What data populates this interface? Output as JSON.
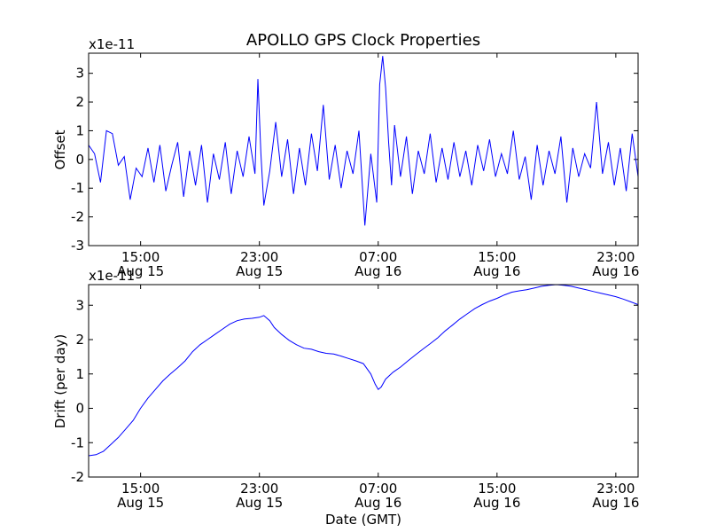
{
  "chart_data": [
    {
      "type": "line",
      "title": "APOLLO GPS Clock Properties",
      "xlabel": "",
      "ylabel": "Offset",
      "y_scale_label": "x1e-11",
      "x_unit": "hours since Aug 15 00:00 GMT",
      "xlim": [
        11.5,
        48.5
      ],
      "ylim": [
        -3,
        3.7
      ],
      "x_ticks": [
        {
          "value": 15,
          "line1": "15:00",
          "line2": "Aug 15"
        },
        {
          "value": 23,
          "line1": "23:00",
          "line2": "Aug 15"
        },
        {
          "value": 31,
          "line1": "07:00",
          "line2": "Aug 16"
        },
        {
          "value": 39,
          "line1": "15:00",
          "line2": "Aug 16"
        },
        {
          "value": 47,
          "line1": "23:00",
          "line2": "Aug 16"
        }
      ],
      "y_ticks": [
        -3,
        -2,
        -1,
        0,
        1,
        2,
        3
      ],
      "grid": false,
      "series": [
        {
          "color": "#0000ff",
          "x": [
            11.5,
            11.9,
            12.3,
            12.7,
            13.1,
            13.5,
            13.9,
            14.3,
            14.7,
            15.1,
            15.5,
            15.9,
            16.3,
            16.7,
            17.1,
            17.5,
            17.9,
            18.3,
            18.7,
            19.1,
            19.5,
            19.9,
            20.3,
            20.7,
            21.1,
            21.5,
            21.9,
            22.3,
            22.7,
            22.9,
            23.1,
            23.3,
            23.7,
            24.1,
            24.5,
            24.9,
            25.3,
            25.7,
            26.1,
            26.5,
            26.9,
            27.3,
            27.7,
            28.1,
            28.5,
            28.9,
            29.3,
            29.7,
            30.1,
            30.5,
            30.9,
            31.1,
            31.3,
            31.5,
            31.7,
            31.9,
            32.1,
            32.5,
            32.9,
            33.3,
            33.7,
            34.1,
            34.5,
            34.9,
            35.3,
            35.7,
            36.1,
            36.5,
            36.9,
            37.3,
            37.7,
            38.1,
            38.5,
            38.9,
            39.3,
            39.7,
            40.1,
            40.5,
            40.9,
            41.3,
            41.7,
            42.1,
            42.5,
            42.9,
            43.3,
            43.7,
            44.1,
            44.5,
            44.9,
            45.3,
            45.7,
            46.1,
            46.5,
            46.9,
            47.3,
            47.7,
            48.1,
            48.5
          ],
          "y": [
            0.5,
            0.2,
            -0.8,
            1.0,
            0.9,
            -0.2,
            0.1,
            -1.4,
            -0.3,
            -0.6,
            0.4,
            -0.8,
            0.5,
            -1.1,
            -0.2,
            0.6,
            -1.3,
            0.3,
            -0.9,
            0.5,
            -1.5,
            0.2,
            -0.7,
            0.6,
            -1.2,
            0.3,
            -0.6,
            0.8,
            -0.5,
            2.8,
            0.2,
            -1.6,
            -0.4,
            1.3,
            -0.6,
            0.7,
            -1.2,
            0.4,
            -0.9,
            0.9,
            -0.4,
            1.9,
            -0.7,
            0.5,
            -1.0,
            0.3,
            -0.5,
            1.0,
            -2.3,
            0.2,
            -1.5,
            2.6,
            3.6,
            2.5,
            0.6,
            -0.9,
            1.2,
            -0.6,
            0.8,
            -1.2,
            0.3,
            -0.5,
            0.9,
            -0.8,
            0.4,
            -0.7,
            0.6,
            -0.6,
            0.3,
            -0.9,
            0.5,
            -0.4,
            0.7,
            -0.6,
            0.2,
            -0.5,
            1.0,
            -0.7,
            0.1,
            -1.4,
            0.5,
            -0.9,
            0.3,
            -0.5,
            0.8,
            -1.5,
            0.4,
            -0.6,
            0.2,
            -0.3,
            2.0,
            -0.5,
            0.6,
            -0.9,
            0.4,
            -1.1,
            0.9,
            -0.6
          ]
        }
      ]
    },
    {
      "type": "line",
      "title": "",
      "xlabel": "Date (GMT)",
      "ylabel": "Drift (per day)",
      "y_scale_label": "x1e-11",
      "x_unit": "hours since Aug 15 00:00 GMT",
      "xlim": [
        11.5,
        48.5
      ],
      "ylim": [
        -2,
        3.6
      ],
      "x_ticks": [
        {
          "value": 15,
          "line1": "15:00",
          "line2": "Aug 15"
        },
        {
          "value": 23,
          "line1": "23:00",
          "line2": "Aug 15"
        },
        {
          "value": 31,
          "line1": "07:00",
          "line2": "Aug 16"
        },
        {
          "value": 39,
          "line1": "15:00",
          "line2": "Aug 16"
        },
        {
          "value": 47,
          "line1": "23:00",
          "line2": "Aug 16"
        }
      ],
      "y_ticks": [
        -2,
        -1,
        0,
        1,
        2,
        3
      ],
      "grid": false,
      "series": [
        {
          "color": "#0000ff",
          "x": [
            11.5,
            12.0,
            12.5,
            13.0,
            13.5,
            14.0,
            14.5,
            15.0,
            15.5,
            16.0,
            16.5,
            17.0,
            17.5,
            18.0,
            18.5,
            19.0,
            19.5,
            20.0,
            20.5,
            21.0,
            21.5,
            22.0,
            22.5,
            23.0,
            23.3,
            23.7,
            24.0,
            24.5,
            25.0,
            25.5,
            26.0,
            26.5,
            27.0,
            27.5,
            28.0,
            28.5,
            29.0,
            29.5,
            30.0,
            30.5,
            30.8,
            31.0,
            31.2,
            31.5,
            32.0,
            32.5,
            33.0,
            33.5,
            34.0,
            34.5,
            35.0,
            35.5,
            36.0,
            36.5,
            37.0,
            37.5,
            38.0,
            38.5,
            39.0,
            39.5,
            40.0,
            40.5,
            41.0,
            41.5,
            42.0,
            42.5,
            43.0,
            43.5,
            44.0,
            44.5,
            45.0,
            45.5,
            46.0,
            46.5,
            47.0,
            47.5,
            48.0,
            48.5
          ],
          "y": [
            -1.38,
            -1.35,
            -1.25,
            -1.05,
            -0.85,
            -0.6,
            -0.35,
            0.0,
            0.3,
            0.55,
            0.8,
            1.0,
            1.18,
            1.38,
            1.65,
            1.85,
            2.0,
            2.15,
            2.3,
            2.45,
            2.55,
            2.6,
            2.62,
            2.65,
            2.7,
            2.55,
            2.35,
            2.15,
            1.98,
            1.85,
            1.75,
            1.72,
            1.65,
            1.6,
            1.58,
            1.52,
            1.45,
            1.38,
            1.3,
            1.0,
            0.7,
            0.55,
            0.62,
            0.85,
            1.05,
            1.2,
            1.38,
            1.55,
            1.72,
            1.88,
            2.05,
            2.25,
            2.42,
            2.6,
            2.75,
            2.9,
            3.02,
            3.12,
            3.2,
            3.3,
            3.38,
            3.42,
            3.45,
            3.5,
            3.55,
            3.58,
            3.6,
            3.58,
            3.55,
            3.5,
            3.45,
            3.4,
            3.35,
            3.3,
            3.25,
            3.18,
            3.1,
            3.02
          ]
        }
      ]
    }
  ]
}
